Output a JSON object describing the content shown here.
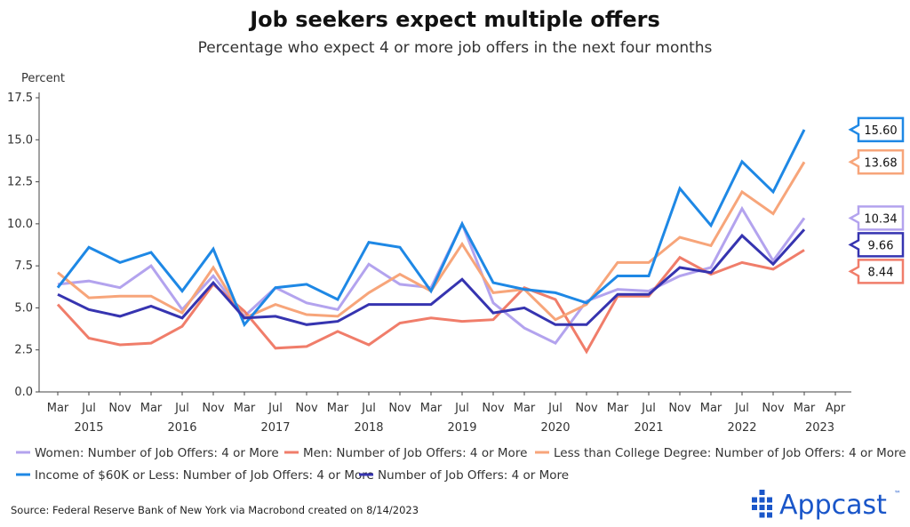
{
  "chart_data": {
    "type": "line",
    "title": "Job seekers expect multiple offers",
    "subtitle": "Percentage who expect 4 or more job offers in the next four months",
    "ylabel": "Percent",
    "ylim": [
      0,
      17.5
    ],
    "yticks": [
      "0.0",
      "2.5",
      "5.0",
      "7.5",
      "10.0",
      "12.5",
      "15.0",
      "17.5"
    ],
    "ytick_values": [
      0,
      2.5,
      5,
      7.5,
      10,
      12.5,
      15,
      17.5
    ],
    "x_months": [
      "Mar",
      "Jul",
      "Nov",
      "Mar",
      "Jul",
      "Nov",
      "Mar",
      "Jul",
      "Nov",
      "Mar",
      "Jul",
      "Nov",
      "Mar",
      "Jul",
      "Nov",
      "Mar",
      "Jul",
      "Nov",
      "Mar",
      "Jul",
      "Nov",
      "Mar",
      "Jul",
      "Nov",
      "Mar",
      "Apr"
    ],
    "x_years": [
      {
        "label": "2015",
        "index": 1
      },
      {
        "label": "2016",
        "index": 4
      },
      {
        "label": "2017",
        "index": 7
      },
      {
        "label": "2018",
        "index": 10
      },
      {
        "label": "2019",
        "index": 13
      },
      {
        "label": "2020",
        "index": 16
      },
      {
        "label": "2021",
        "index": 19
      },
      {
        "label": "2022",
        "index": 22
      },
      {
        "label": "2023",
        "index": 24.5
      }
    ],
    "x": [
      "Mar 2015",
      "Jul 2015",
      "Nov 2015",
      "Mar 2016",
      "Jul 2016",
      "Nov 2016",
      "Mar 2017",
      "Jul 2017",
      "Nov 2017",
      "Mar 2018",
      "Jul 2018",
      "Nov 2018",
      "Mar 2019",
      "Jul 2019",
      "Nov 2019",
      "Mar 2020",
      "Jul 2020",
      "Nov 2020",
      "Mar 2021",
      "Jul 2021",
      "Nov 2021",
      "Mar 2022",
      "Jul 2022",
      "Nov 2022",
      "Mar 2023"
    ],
    "series": [
      {
        "name": "Women: Number of Job Offers: 4 or More",
        "color": "#b3a3ee",
        "values": [
          6.4,
          6.6,
          6.2,
          7.5,
          4.9,
          6.9,
          4.5,
          6.2,
          5.3,
          4.9,
          7.6,
          6.4,
          6.2,
          10.0,
          5.3,
          3.8,
          2.9,
          5.4,
          6.1,
          6.0,
          6.9,
          7.4,
          10.9,
          7.8,
          10.34
        ]
      },
      {
        "name": "Men: Number of Job Offers: 4 or More",
        "color": "#f07d6a",
        "values": [
          5.2,
          3.2,
          2.8,
          2.9,
          3.9,
          6.4,
          4.8,
          2.6,
          2.7,
          3.6,
          2.8,
          4.1,
          4.4,
          4.2,
          4.3,
          6.2,
          5.5,
          2.4,
          5.7,
          5.7,
          8.0,
          7.0,
          7.7,
          7.3,
          8.44
        ]
      },
      {
        "name": "Less than College Degree: Number of Job Offers: 4 or More",
        "color": "#f7a57a",
        "values": [
          7.1,
          5.6,
          5.7,
          5.7,
          4.7,
          7.4,
          4.4,
          5.2,
          4.6,
          4.5,
          5.9,
          7.0,
          6.0,
          8.8,
          5.9,
          6.1,
          4.3,
          5.2,
          7.7,
          7.7,
          9.2,
          8.7,
          11.9,
          10.6,
          13.68
        ]
      },
      {
        "name": "Income of $60K or Less: Number of Job Offers: 4 or More",
        "color": "#1e88e5",
        "values": [
          6.2,
          8.6,
          7.7,
          8.3,
          6.0,
          8.5,
          4.0,
          6.2,
          6.4,
          5.5,
          8.9,
          8.6,
          6.0,
          10.0,
          6.5,
          6.1,
          5.9,
          5.3,
          6.9,
          6.9,
          12.1,
          9.9,
          13.7,
          11.9,
          15.6
        ]
      },
      {
        "name": "Number of Job Offers: 4 or More",
        "color": "#3634b0",
        "values": [
          5.8,
          4.9,
          4.5,
          5.1,
          4.4,
          6.5,
          4.4,
          4.5,
          4.0,
          4.2,
          5.2,
          5.2,
          5.2,
          6.7,
          4.7,
          5.0,
          4.0,
          4.0,
          5.8,
          5.8,
          7.4,
          7.1,
          9.3,
          7.6,
          9.66
        ]
      }
    ],
    "callouts": [
      {
        "label": "15.60",
        "value": 15.6,
        "color": "#1e88e5"
      },
      {
        "label": "13.68",
        "value": 13.68,
        "color": "#f7a57a"
      },
      {
        "label": "10.34",
        "value": 10.34,
        "color": "#b3a3ee"
      },
      {
        "label": "9.66",
        "value": 9.66,
        "color": "#3634b0"
      },
      {
        "label": "8.44",
        "value": 8.44,
        "color": "#f07d6a"
      }
    ],
    "legend": {
      "placement": "bottom",
      "rows": [
        [
          {
            "label": "Women: Number of Job Offers: 4 or More",
            "color": "#b3a3ee"
          },
          {
            "label": "Men: Number of Job Offers: 4 or More",
            "color": "#f07d6a"
          },
          {
            "label": "Less than College Degree: Number of Job Offers: 4 or More",
            "color": "#f7a57a"
          }
        ],
        [
          {
            "label": "Income of $60K or Less: Number of Job Offers: 4 or More",
            "color": "#1e88e5"
          },
          {
            "label": "Number of Job Offers: 4 or More",
            "color": "#3634b0"
          }
        ]
      ]
    },
    "grid": false
  },
  "source": "Source: Federal Reserve Bank of New York via Macrobond created on 8/14/2023",
  "brand": {
    "name": "Appcast",
    "color": "#1a56c9",
    "mark": "™"
  }
}
